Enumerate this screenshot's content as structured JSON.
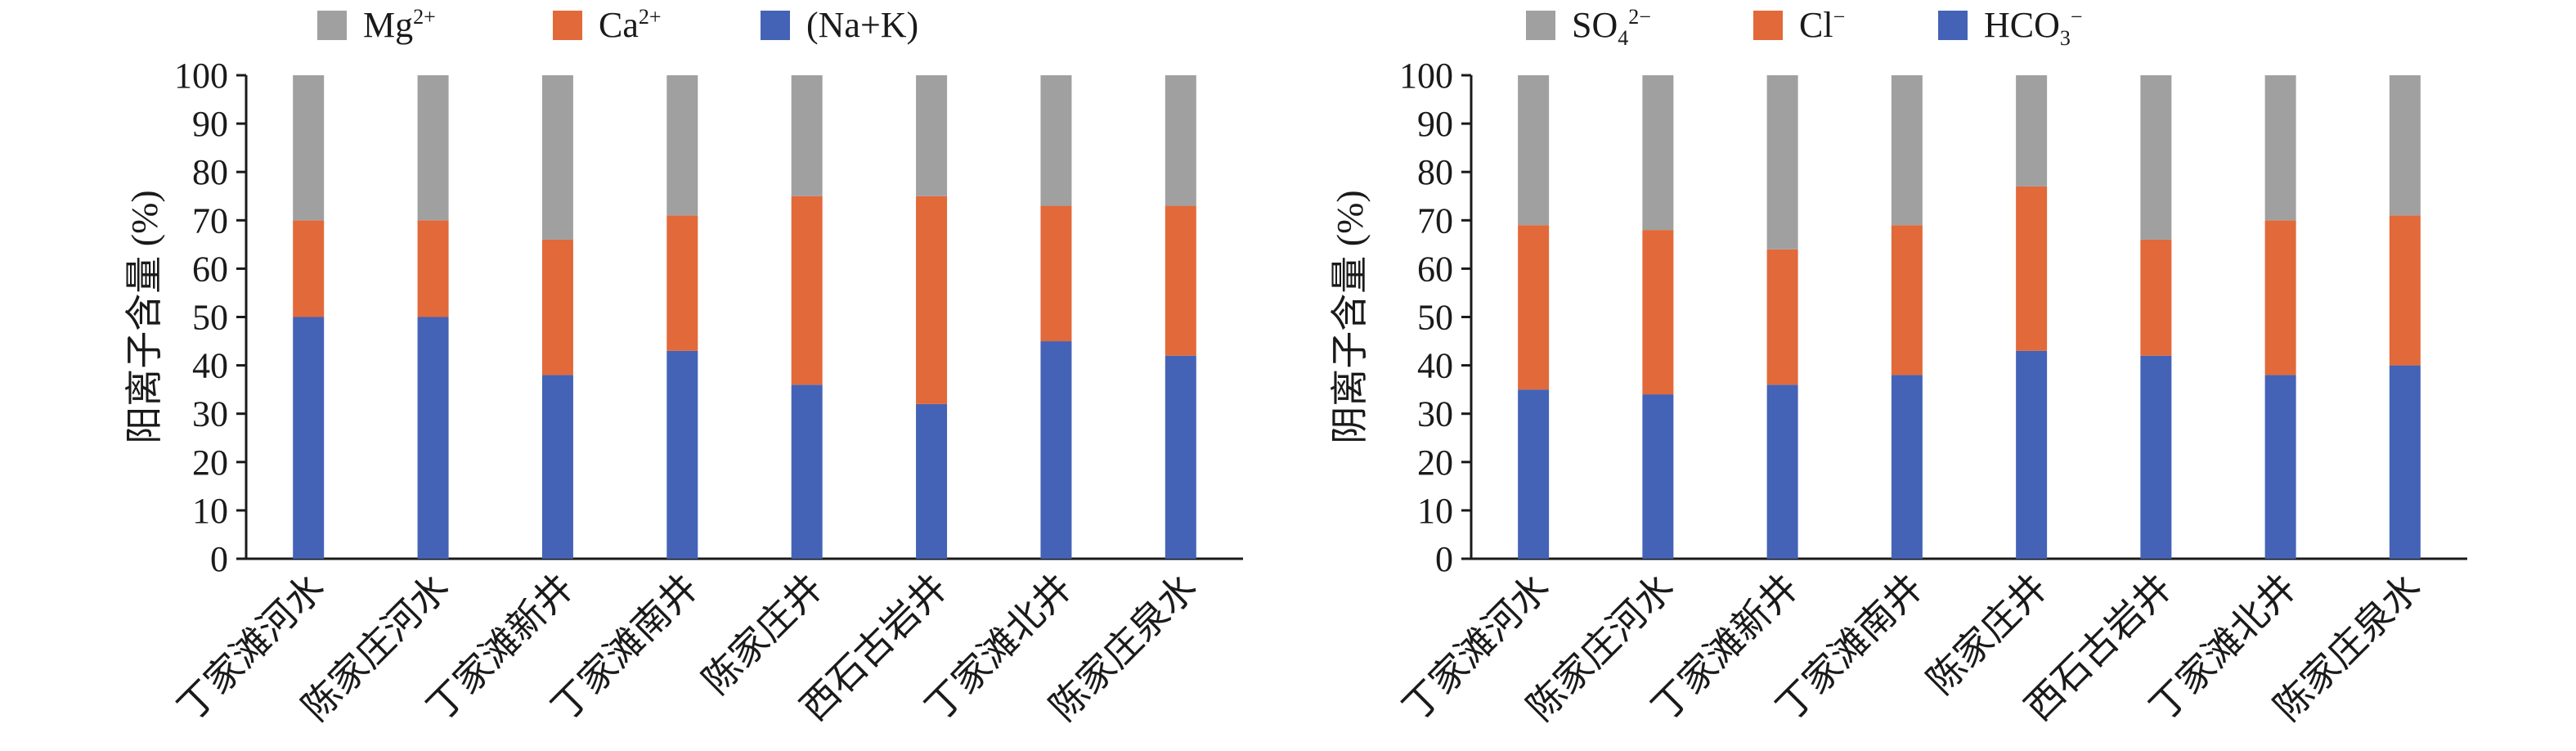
{
  "chart_data": [
    {
      "type": "bar",
      "stacked": true,
      "percent": true,
      "ylabel": "阳离子含量 (%)",
      "ylim": [
        0,
        100
      ],
      "yticks": [
        0,
        10,
        20,
        30,
        40,
        50,
        60,
        70,
        80,
        90,
        100
      ],
      "categories": [
        "丁家滩河水",
        "陈家庄河水",
        "丁家滩新井",
        "丁家滩南井",
        "陈家庄井",
        "西石古岩井",
        "丁家滩北井",
        "陈家庄泉水"
      ],
      "legend_position": "top",
      "series": [
        {
          "name": "(Na+K)",
          "legend_base": "(Na+K)",
          "legend_sup": "",
          "legend_sub": "",
          "color": "#4463b6",
          "values": [
            50,
            50,
            38,
            43,
            36,
            32,
            45,
            42
          ]
        },
        {
          "name": "Ca2+",
          "legend_base": "Ca",
          "legend_sup": "2+",
          "legend_sub": "",
          "color": "#e2693a",
          "values": [
            20,
            20,
            28,
            28,
            39,
            43,
            28,
            31
          ]
        },
        {
          "name": "Mg2+",
          "legend_base": "Mg",
          "legend_sup": "2+",
          "legend_sub": "",
          "color": "#a0a0a0",
          "values": [
            30,
            30,
            34,
            29,
            25,
            25,
            27,
            27
          ]
        }
      ],
      "legend_order": [
        2,
        1,
        0
      ]
    },
    {
      "type": "bar",
      "stacked": true,
      "percent": true,
      "ylabel": "阴离子含量 (%)",
      "ylim": [
        0,
        100
      ],
      "yticks": [
        0,
        10,
        20,
        30,
        40,
        50,
        60,
        70,
        80,
        90,
        100
      ],
      "categories": [
        "丁家滩河水",
        "陈家庄河水",
        "丁家滩新井",
        "丁家滩南井",
        "陈家庄井",
        "西石古岩井",
        "丁家滩北井",
        "陈家庄泉水"
      ],
      "legend_position": "top",
      "series": [
        {
          "name": "HCO3−",
          "legend_base": "HCO",
          "legend_sub": "3",
          "legend_sup": "−",
          "color": "#4463b6",
          "values": [
            35,
            34,
            36,
            38,
            43,
            42,
            38,
            40
          ]
        },
        {
          "name": "Cl−",
          "legend_base": "Cl",
          "legend_sub": "",
          "legend_sup": "−",
          "color": "#e2693a",
          "values": [
            34,
            34,
            28,
            31,
            34,
            24,
            32,
            31
          ]
        },
        {
          "name": "SO42−",
          "legend_base": "SO",
          "legend_sub": "4",
          "legend_sup": "2−",
          "color": "#a0a0a0",
          "values": [
            31,
            32,
            36,
            31,
            23,
            34,
            30,
            29
          ]
        }
      ],
      "legend_order": [
        2,
        1,
        0
      ]
    }
  ]
}
